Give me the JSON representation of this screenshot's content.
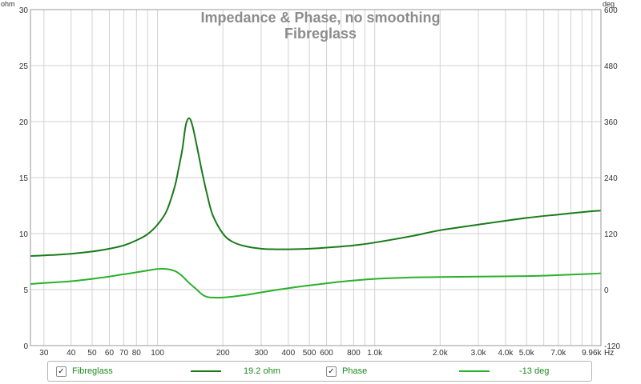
{
  "chart_data": {
    "type": "line",
    "title": "Impedance & Phase, no smoothing",
    "subtitle": "Fibreglass",
    "x_scale": "log",
    "xlim": [
      26,
      11000
    ],
    "x_unit_label": "Hz",
    "x_tick_labels": [
      "30",
      "40",
      "50",
      "60",
      "70",
      "80",
      "100",
      "200",
      "300",
      "400",
      "500",
      "600",
      "800",
      "1.0k",
      "2.0k",
      "3.0k",
      "4.0k",
      "5.0k",
      "7.0k",
      "9.96k"
    ],
    "x_tick_values": [
      30,
      40,
      50,
      60,
      70,
      80,
      100,
      200,
      300,
      400,
      500,
      600,
      800,
      1000,
      2000,
      3000,
      4000,
      5000,
      7000,
      9960
    ],
    "ylim_left": [
      0,
      30
    ],
    "y_left_unit": "ohm",
    "y_left_ticks": [
      0,
      5,
      10,
      15,
      20,
      25,
      30
    ],
    "ylim_right": [
      -120,
      600
    ],
    "y_right_unit": "deg",
    "y_right_ticks": [
      -120,
      0,
      120,
      240,
      360,
      480,
      600
    ],
    "grid": true,
    "legend_position": "bottom",
    "series": [
      {
        "name": "Fibreglass",
        "axis": "left",
        "color": "#1a7a1a",
        "x": [
          26,
          30,
          40,
          50,
          60,
          70,
          80,
          90,
          100,
          110,
          120,
          125,
          130,
          135,
          140,
          145,
          150,
          160,
          170,
          180,
          200,
          220,
          250,
          300,
          350,
          400,
          500,
          600,
          800,
          1000,
          1500,
          2000,
          3000,
          5000,
          7000,
          10000,
          11000
        ],
        "y": [
          8.0,
          8.05,
          8.2,
          8.4,
          8.65,
          8.95,
          9.4,
          9.95,
          10.8,
          12.0,
          14.2,
          15.8,
          17.5,
          19.7,
          20.3,
          19.6,
          18.3,
          15.6,
          13.3,
          11.6,
          10.0,
          9.3,
          8.9,
          8.65,
          8.6,
          8.6,
          8.65,
          8.75,
          8.95,
          9.2,
          9.8,
          10.3,
          10.8,
          11.4,
          11.7,
          12.0,
          12.05
        ]
      },
      {
        "name": "Phase",
        "axis": "right",
        "color": "#2ab02a",
        "x": [
          26,
          30,
          40,
          50,
          60,
          70,
          80,
          90,
          100,
          110,
          120,
          125,
          130,
          140,
          150,
          160,
          170,
          180,
          200,
          250,
          300,
          400,
          500,
          700,
          1000,
          1500,
          2000,
          3000,
          5000,
          7000,
          10000,
          11000
        ],
        "y": [
          12,
          14,
          18,
          23,
          28,
          33,
          37,
          41,
          44,
          44,
          40,
          35,
          29,
          14,
          2,
          -10,
          -16,
          -17,
          -17,
          -12,
          -6,
          3,
          9,
          17,
          23,
          26,
          27,
          28,
          29,
          31,
          34,
          35
        ]
      }
    ]
  },
  "legend": {
    "items": [
      {
        "checkbox": "✓",
        "name": "Fibreglass",
        "value": "19.2 ohm",
        "color": "#1a7a1a"
      },
      {
        "checkbox": "✓",
        "name": "Phase",
        "value": "-13 deg",
        "color": "#2ab02a"
      }
    ]
  }
}
